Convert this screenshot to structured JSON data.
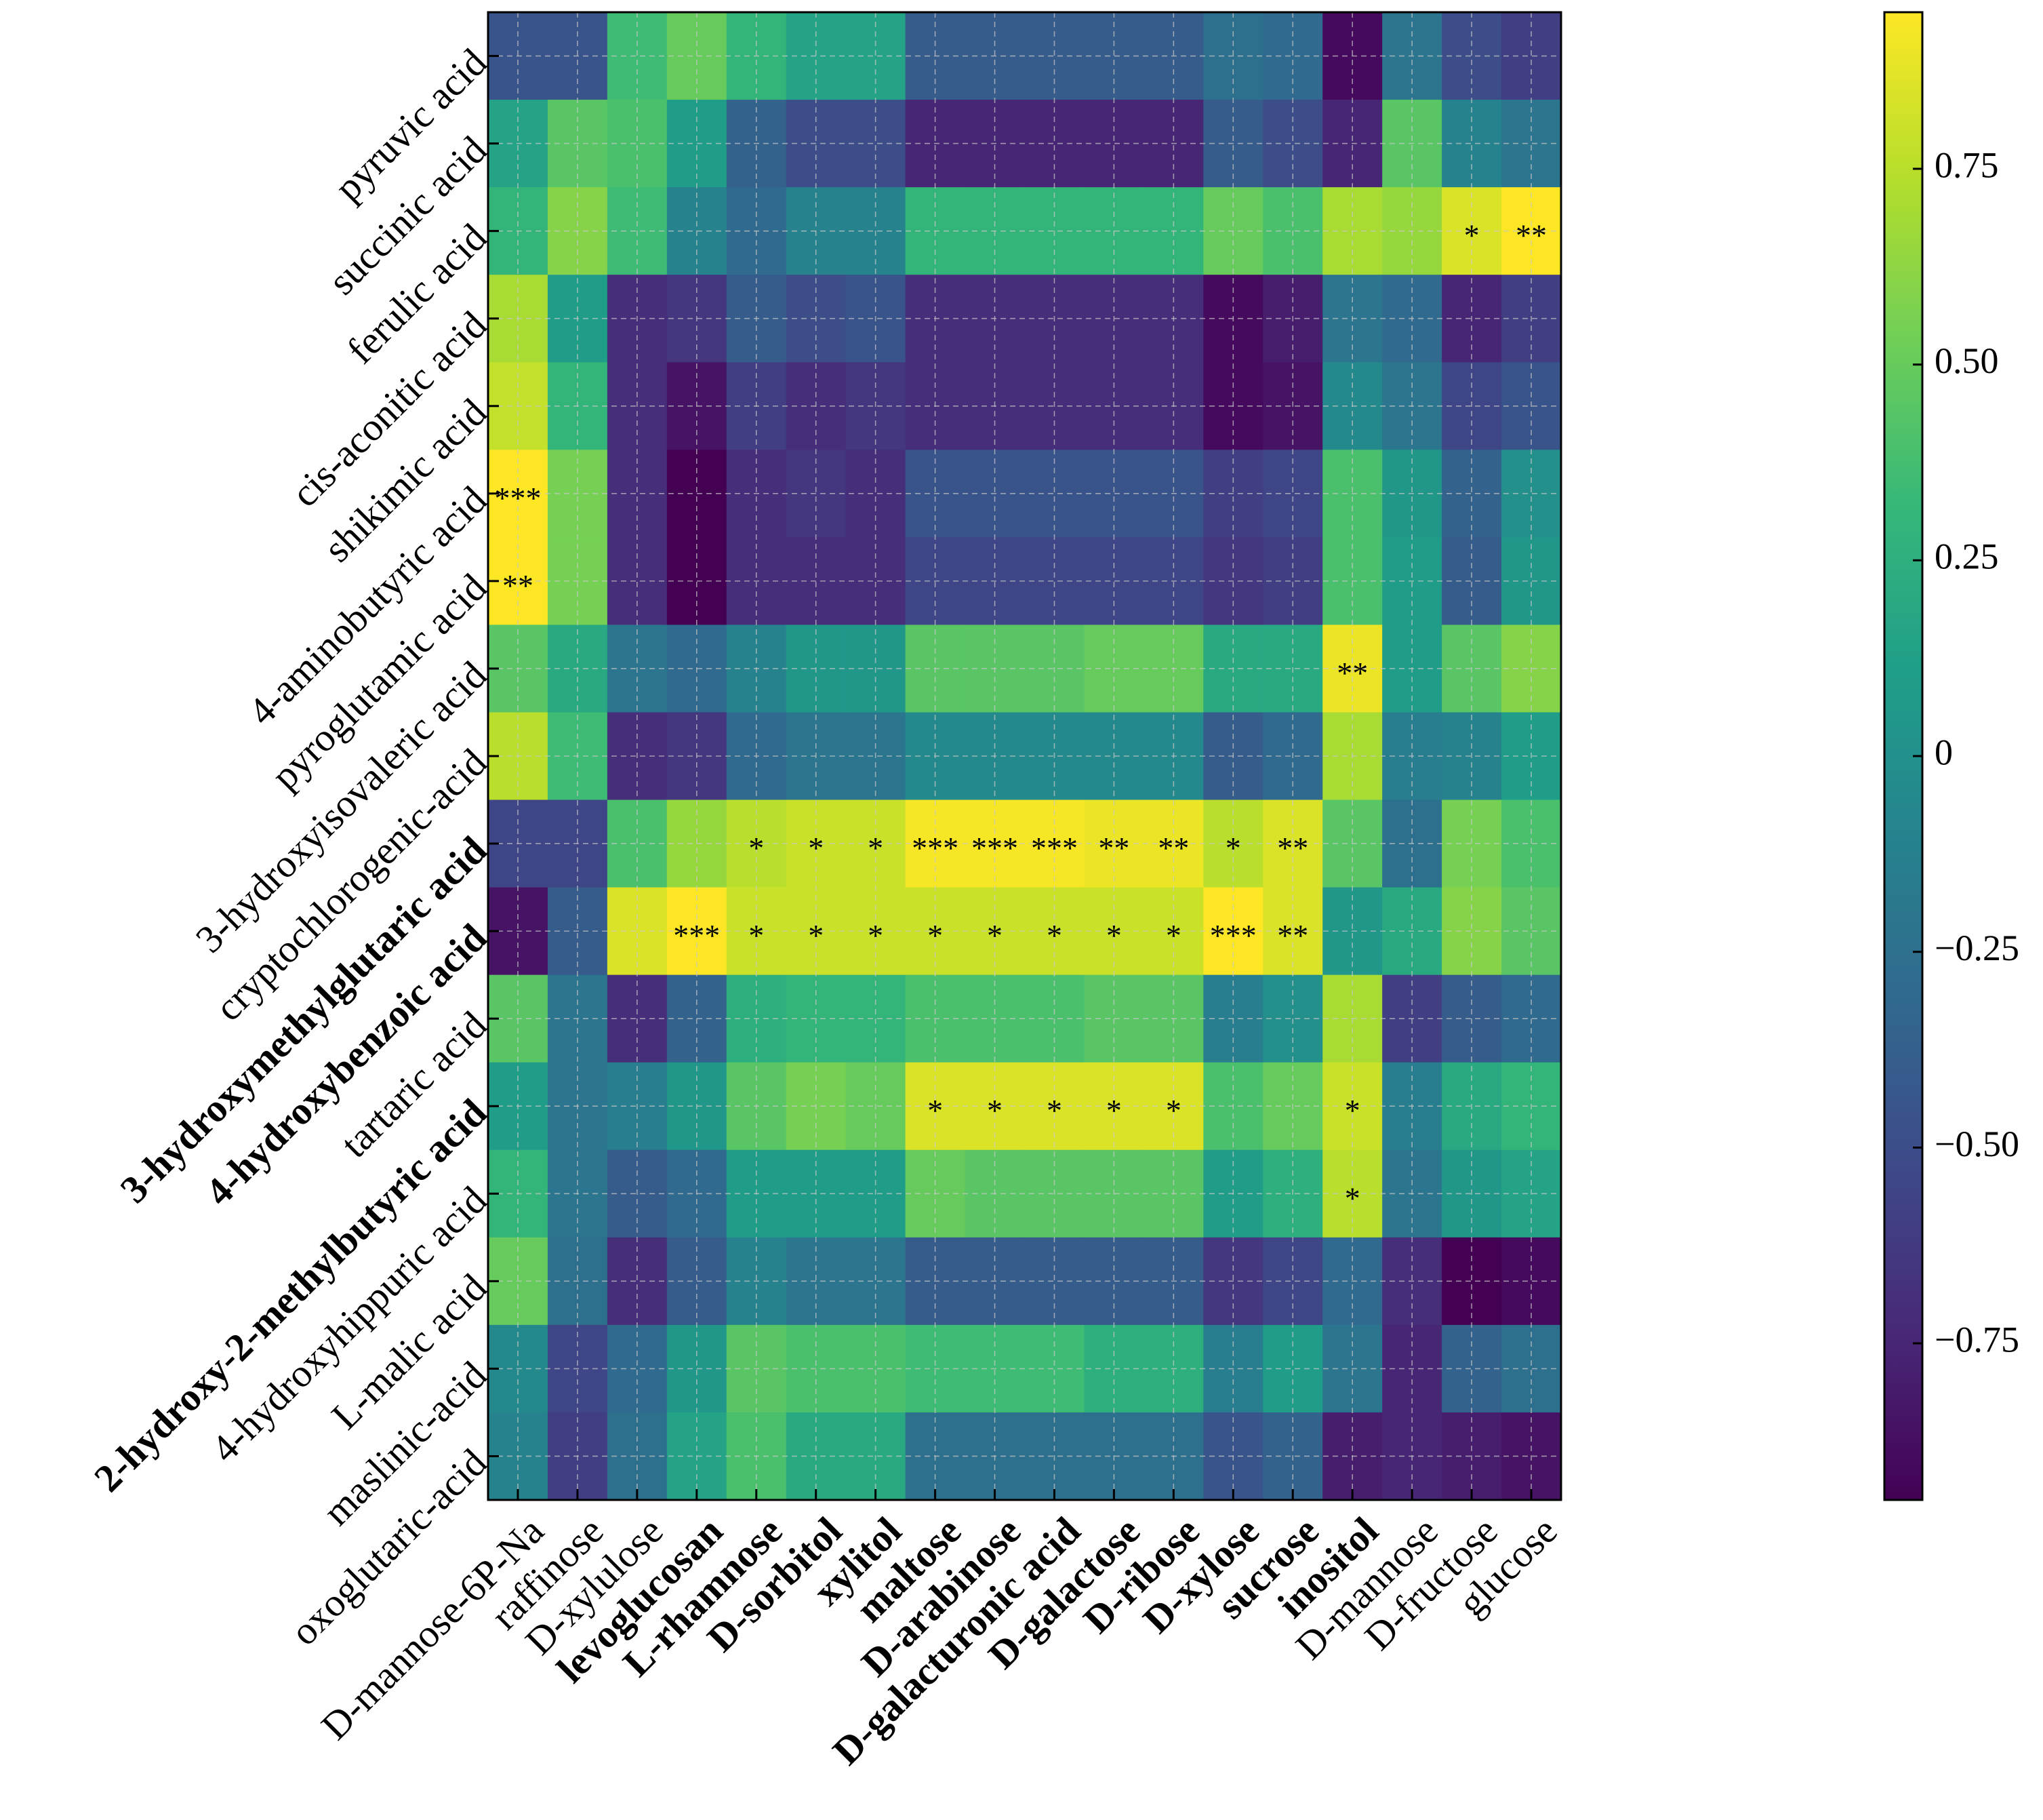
{
  "chart_data": {
    "type": "heatmap",
    "title": "",
    "xlabel": "",
    "ylabel": "",
    "rows": [
      "pyruvic acid",
      "succinic acid",
      "ferulic acid",
      "cis-aconitic acid",
      "shikimic acid",
      "4-aminobutyric acid",
      "pyroglutamic acid",
      "3-hydroxyisovaleric acid",
      "cryptochlorogenic-acid",
      "3-hydroxymethylglutaric acid",
      "4-hydroxybenzoic acid",
      "tartaric acid",
      "2-hydroxy-2-methylbutyric acid",
      "4-hydroxyhippuric acid",
      "L-malic acid",
      "maslinic-acid",
      "oxoglutaric-acid"
    ],
    "bold_rows": [
      "3-hydroxymethylglutaric acid",
      "4-hydroxybenzoic acid",
      "2-hydroxy-2-methylbutyric acid"
    ],
    "columns": [
      "D-mannose-6P-Na",
      "raffinose",
      "D-xylulose",
      "levoglucosan",
      "L-rhamnose",
      "D-sorbitol",
      "xylitol",
      "maltose",
      "D-arabinose",
      "D-galacturonic acid",
      "D-galactose",
      "D-ribose",
      "D-xylose",
      "sucrose",
      "inositol",
      "D-mannose",
      "D-fructose",
      "glucose"
    ],
    "bold_columns": [
      "levoglucosan",
      "L-rhamnose",
      "D-sorbitol",
      "xylitol",
      "maltose",
      "D-arabinose",
      "D-galacturonic acid",
      "D-galactose",
      "D-ribose",
      "D-xylose",
      "sucrose",
      "inositol"
    ],
    "values": [
      [
        -0.45,
        -0.45,
        0.35,
        0.5,
        0.3,
        0.15,
        0.15,
        -0.4,
        -0.4,
        -0.4,
        -0.4,
        -0.4,
        -0.25,
        -0.3,
        -0.9,
        -0.2,
        -0.5,
        -0.6
      ],
      [
        0.15,
        0.45,
        0.4,
        0.1,
        -0.35,
        -0.5,
        -0.5,
        -0.75,
        -0.75,
        -0.75,
        -0.75,
        -0.75,
        -0.4,
        -0.5,
        -0.75,
        0.45,
        -0.1,
        -0.2
      ],
      [
        0.3,
        0.6,
        0.35,
        -0.1,
        -0.3,
        -0.1,
        -0.1,
        0.3,
        0.3,
        0.3,
        0.3,
        0.3,
        0.5,
        0.4,
        0.7,
        0.65,
        0.85,
        0.95
      ],
      [
        0.7,
        0.1,
        -0.7,
        -0.65,
        -0.4,
        -0.5,
        -0.45,
        -0.7,
        -0.7,
        -0.7,
        -0.7,
        -0.7,
        -0.9,
        -0.8,
        -0.2,
        -0.3,
        -0.75,
        -0.6
      ],
      [
        0.78,
        0.3,
        -0.7,
        -0.85,
        -0.6,
        -0.7,
        -0.65,
        -0.7,
        -0.7,
        -0.7,
        -0.7,
        -0.7,
        -0.9,
        -0.85,
        -0.05,
        -0.2,
        -0.55,
        -0.45
      ],
      [
        0.95,
        0.55,
        -0.7,
        -0.95,
        -0.7,
        -0.65,
        -0.7,
        -0.45,
        -0.45,
        -0.45,
        -0.45,
        -0.45,
        -0.6,
        -0.55,
        0.4,
        0.05,
        -0.35,
        0.0
      ],
      [
        0.95,
        0.55,
        -0.7,
        -0.95,
        -0.7,
        -0.7,
        -0.7,
        -0.55,
        -0.55,
        -0.55,
        -0.55,
        -0.55,
        -0.65,
        -0.6,
        0.4,
        0.1,
        -0.4,
        0.05
      ],
      [
        0.45,
        0.2,
        -0.2,
        -0.3,
        -0.1,
        0.05,
        0.05,
        0.45,
        0.45,
        0.45,
        0.5,
        0.5,
        0.2,
        0.2,
        0.9,
        0.1,
        0.45,
        0.6
      ],
      [
        0.75,
        0.35,
        -0.7,
        -0.65,
        -0.3,
        -0.2,
        -0.2,
        -0.05,
        -0.05,
        -0.05,
        -0.05,
        -0.05,
        -0.4,
        -0.3,
        0.7,
        -0.15,
        -0.1,
        0.1
      ],
      [
        -0.55,
        -0.55,
        0.4,
        0.65,
        0.75,
        0.8,
        0.8,
        0.93,
        0.93,
        0.93,
        0.9,
        0.9,
        0.75,
        0.85,
        0.45,
        -0.25,
        0.55,
        0.4
      ],
      [
        -0.85,
        -0.4,
        0.85,
        0.95,
        0.8,
        0.8,
        0.8,
        0.8,
        0.8,
        0.8,
        0.8,
        0.8,
        0.95,
        0.85,
        0.05,
        0.2,
        0.6,
        0.45
      ],
      [
        0.45,
        -0.2,
        -0.7,
        -0.35,
        0.25,
        0.3,
        0.3,
        0.4,
        0.4,
        0.4,
        0.45,
        0.45,
        -0.15,
        0.0,
        0.7,
        -0.6,
        -0.4,
        -0.3
      ],
      [
        0.1,
        -0.2,
        -0.15,
        0.05,
        0.45,
        0.55,
        0.5,
        0.85,
        0.85,
        0.85,
        0.85,
        0.85,
        0.4,
        0.5,
        0.8,
        -0.15,
        0.2,
        0.3
      ],
      [
        0.3,
        -0.2,
        -0.4,
        -0.3,
        0.1,
        0.1,
        0.1,
        0.5,
        0.45,
        0.45,
        0.45,
        0.45,
        0.1,
        0.25,
        0.75,
        -0.2,
        0.05,
        0.15
      ],
      [
        0.5,
        -0.25,
        -0.7,
        -0.4,
        -0.1,
        -0.2,
        -0.2,
        -0.4,
        -0.4,
        -0.4,
        -0.4,
        -0.4,
        -0.65,
        -0.55,
        -0.3,
        -0.7,
        -0.95,
        -0.9
      ],
      [
        -0.05,
        -0.55,
        -0.3,
        0.05,
        0.45,
        0.4,
        0.4,
        0.35,
        0.35,
        0.35,
        0.25,
        0.25,
        -0.15,
        0.1,
        -0.2,
        -0.75,
        -0.35,
        -0.25
      ],
      [
        -0.1,
        -0.6,
        -0.25,
        0.15,
        0.4,
        0.2,
        0.2,
        -0.25,
        -0.25,
        -0.25,
        -0.25,
        -0.25,
        -0.45,
        -0.35,
        -0.8,
        -0.75,
        -0.8,
        -0.85
      ]
    ],
    "annotations": [
      {
        "row": 2,
        "col": 16,
        "text": "*"
      },
      {
        "row": 2,
        "col": 17,
        "text": "**"
      },
      {
        "row": 5,
        "col": 0,
        "text": "***"
      },
      {
        "row": 6,
        "col": 0,
        "text": "**"
      },
      {
        "row": 7,
        "col": 14,
        "text": "**"
      },
      {
        "row": 9,
        "col": 4,
        "text": "*"
      },
      {
        "row": 9,
        "col": 5,
        "text": "*"
      },
      {
        "row": 9,
        "col": 6,
        "text": "*"
      },
      {
        "row": 9,
        "col": 7,
        "text": "***"
      },
      {
        "row": 9,
        "col": 8,
        "text": "***"
      },
      {
        "row": 9,
        "col": 9,
        "text": "***"
      },
      {
        "row": 9,
        "col": 10,
        "text": "**"
      },
      {
        "row": 9,
        "col": 11,
        "text": "**"
      },
      {
        "row": 9,
        "col": 12,
        "text": "*"
      },
      {
        "row": 9,
        "col": 13,
        "text": "**"
      },
      {
        "row": 10,
        "col": 3,
        "text": "***"
      },
      {
        "row": 10,
        "col": 4,
        "text": "*"
      },
      {
        "row": 10,
        "col": 5,
        "text": "*"
      },
      {
        "row": 10,
        "col": 6,
        "text": "*"
      },
      {
        "row": 10,
        "col": 7,
        "text": "*"
      },
      {
        "row": 10,
        "col": 8,
        "text": "*"
      },
      {
        "row": 10,
        "col": 9,
        "text": "*"
      },
      {
        "row": 10,
        "col": 10,
        "text": "*"
      },
      {
        "row": 10,
        "col": 11,
        "text": "*"
      },
      {
        "row": 10,
        "col": 12,
        "text": "***"
      },
      {
        "row": 10,
        "col": 13,
        "text": "**"
      },
      {
        "row": 12,
        "col": 7,
        "text": "*"
      },
      {
        "row": 12,
        "col": 8,
        "text": "*"
      },
      {
        "row": 12,
        "col": 9,
        "text": "*"
      },
      {
        "row": 12,
        "col": 10,
        "text": "*"
      },
      {
        "row": 12,
        "col": 11,
        "text": "*"
      },
      {
        "row": 12,
        "col": 14,
        "text": "*"
      },
      {
        "row": 13,
        "col": 14,
        "text": "*"
      }
    ],
    "colormap": "viridis",
    "vmin": -0.95,
    "vmax": 0.95,
    "colorbar_ticks": [
      0.75,
      0.5,
      0.25,
      0,
      -0.25,
      -0.5,
      -0.75
    ],
    "colorbar_tick_labels": [
      "0.75",
      "0.50",
      "0.25",
      "0",
      "−0.25",
      "−0.50",
      "−0.75"
    ],
    "grid": true
  }
}
